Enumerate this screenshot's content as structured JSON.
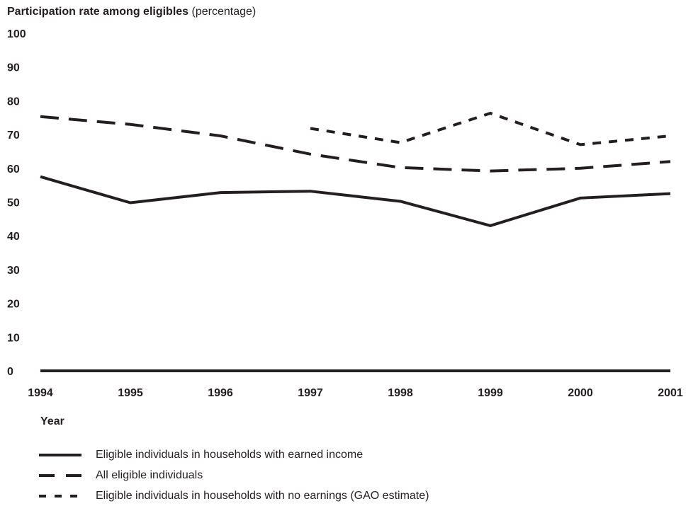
{
  "title": {
    "bold": "Participation rate among eligibles",
    "normal": "(percentage)"
  },
  "chart_data": {
    "type": "line",
    "title": "Participation rate among eligibles (percentage)",
    "xlabel": "Year",
    "ylabel": "",
    "x": [
      "1994",
      "1995",
      "1996",
      "1997",
      "1998",
      "1999",
      "2000",
      "2001"
    ],
    "ylim": [
      0,
      100
    ],
    "yticks": [
      "0",
      "10",
      "20",
      "30",
      "40",
      "50",
      "60",
      "70",
      "80",
      "90",
      "100"
    ],
    "grid": false,
    "legend_position": "bottom",
    "series": [
      {
        "name": "Eligible individuals in households with earned income",
        "style": "solid",
        "color": "#231f20",
        "values": [
          57.5,
          49.8,
          52.8,
          53.2,
          50.2,
          43.0,
          51.2,
          52.5
        ]
      },
      {
        "name": "All eligible individuals",
        "style": "long-dash",
        "color": "#231f20",
        "values": [
          75.3,
          73.0,
          69.6,
          64.2,
          60.2,
          59.2,
          60.0,
          62.0
        ]
      },
      {
        "name": "Eligible individuals in households with no earnings (GAO estimate)",
        "style": "short-dash",
        "color": "#231f20",
        "values": [
          null,
          null,
          null,
          71.8,
          67.6,
          76.3,
          67.0,
          69.6
        ]
      }
    ]
  }
}
